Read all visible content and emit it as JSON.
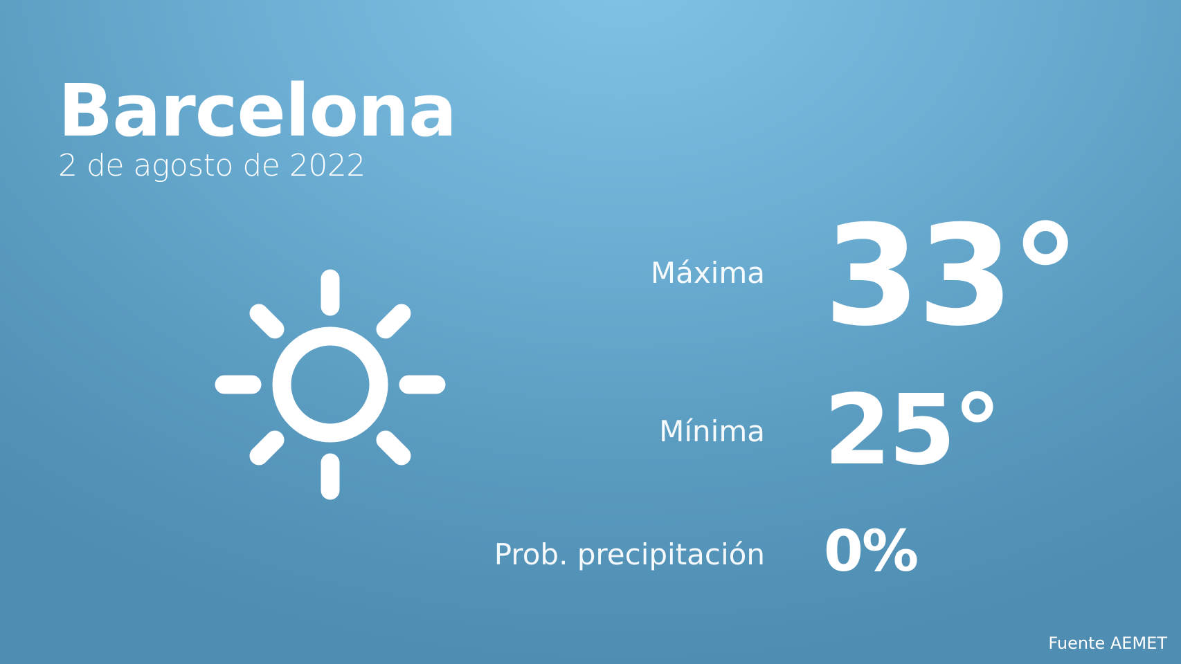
{
  "city": "Barcelona",
  "date": "2 de agosto de 2022",
  "weather_icon": "sun-icon",
  "max": {
    "label": "Máxima",
    "value": "33°"
  },
  "min": {
    "label": "Mínima",
    "value": "25°"
  },
  "precip": {
    "label": "Prob. precipitación",
    "value": "0%"
  },
  "source": "Fuente AEMET",
  "colors": {
    "background_top": "#80c3e6",
    "background_bottom": "#4f8db2",
    "text": "#ffffff"
  }
}
